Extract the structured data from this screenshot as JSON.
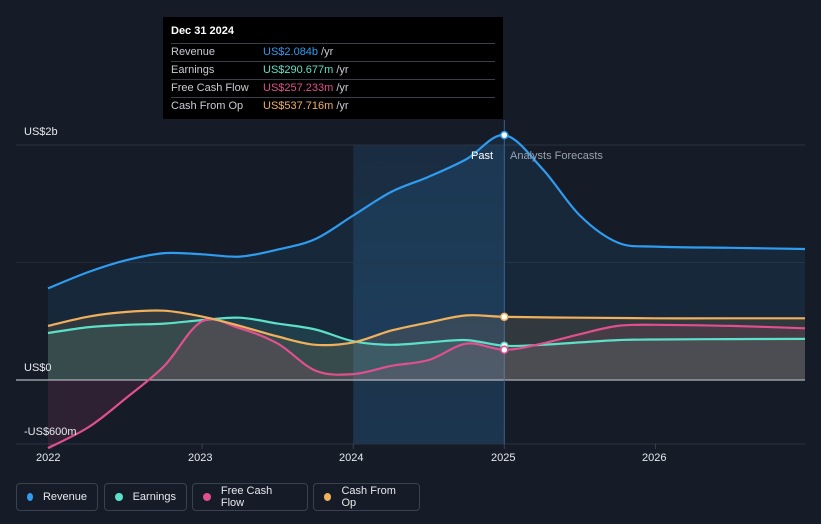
{
  "tooltip": {
    "date": "Dec 31 2024",
    "rows": [
      {
        "label": "Revenue",
        "value": "US$2.084b",
        "unit": "/yr",
        "color": "#2f9cf0"
      },
      {
        "label": "Earnings",
        "value": "US$290.677m",
        "unit": "/yr",
        "color": "#5ce0c8"
      },
      {
        "label": "Free Cash Flow",
        "value": "US$257.233m",
        "unit": "/yr",
        "color": "#e0508e"
      },
      {
        "label": "Cash From Op",
        "value": "US$537.716m",
        "unit": "/yr",
        "color": "#f0b05c"
      }
    ]
  },
  "labels": {
    "past": "Past",
    "forecast": "Analysts Forecasts"
  },
  "legend": [
    {
      "label": "Revenue",
      "color": "#2f9cf0"
    },
    {
      "label": "Earnings",
      "color": "#5ce0c8"
    },
    {
      "label": "Free Cash Flow",
      "color": "#e0508e"
    },
    {
      "label": "Cash From Op",
      "color": "#f0b05c"
    }
  ],
  "chart_data": {
    "type": "line",
    "unit": "US$ millions",
    "y_tick_labels": [
      "US$2b",
      "US$0",
      "-US$600m"
    ],
    "x_tick_labels": [
      "2022",
      "2023",
      "2024",
      "2025",
      "2026"
    ],
    "ylim": [
      -600,
      2000
    ],
    "xlim": [
      2021.98,
      2026.99
    ],
    "highlight_range": [
      2024,
      2025
    ],
    "past_forecast_split": 2025,
    "series": [
      {
        "name": "Revenue",
        "color": "#2f9cf0",
        "points": [
          [
            2021.98,
            780
          ],
          [
            2022.25,
            920
          ],
          [
            2022.5,
            1020
          ],
          [
            2022.75,
            1080
          ],
          [
            2023,
            1070
          ],
          [
            2023.25,
            1050
          ],
          [
            2023.5,
            1110
          ],
          [
            2023.75,
            1200
          ],
          [
            2024,
            1400
          ],
          [
            2024.25,
            1600
          ],
          [
            2024.5,
            1730
          ],
          [
            2024.75,
            1880
          ],
          [
            2025,
            2084
          ],
          [
            2025.25,
            1800
          ],
          [
            2025.5,
            1400
          ],
          [
            2025.75,
            1170
          ],
          [
            2026,
            1135
          ],
          [
            2026.5,
            1125
          ],
          [
            2026.99,
            1115
          ]
        ]
      },
      {
        "name": "Earnings",
        "color": "#5ce0c8",
        "points": [
          [
            2021.98,
            400
          ],
          [
            2022.25,
            450
          ],
          [
            2022.5,
            470
          ],
          [
            2022.75,
            480
          ],
          [
            2023,
            510
          ],
          [
            2023.25,
            530
          ],
          [
            2023.5,
            480
          ],
          [
            2023.75,
            430
          ],
          [
            2024,
            330
          ],
          [
            2024.25,
            300
          ],
          [
            2024.5,
            320
          ],
          [
            2024.75,
            340
          ],
          [
            2025,
            290.677
          ],
          [
            2025.25,
            300
          ],
          [
            2025.5,
            320
          ],
          [
            2025.75,
            340
          ],
          [
            2026,
            345
          ],
          [
            2026.5,
            348
          ],
          [
            2026.99,
            350
          ]
        ]
      },
      {
        "name": "Free Cash Flow",
        "color": "#e0508e",
        "points": [
          [
            2021.98,
            -580
          ],
          [
            2022.25,
            -400
          ],
          [
            2022.5,
            -150
          ],
          [
            2022.75,
            120
          ],
          [
            2023,
            500
          ],
          [
            2023.25,
            440
          ],
          [
            2023.5,
            310
          ],
          [
            2023.75,
            80
          ],
          [
            2024,
            50
          ],
          [
            2024.25,
            120
          ],
          [
            2024.5,
            170
          ],
          [
            2024.75,
            310
          ],
          [
            2025,
            257.233
          ],
          [
            2025.25,
            310
          ],
          [
            2025.5,
            390
          ],
          [
            2025.75,
            460
          ],
          [
            2026,
            470
          ],
          [
            2026.5,
            460
          ],
          [
            2026.99,
            440
          ]
        ]
      },
      {
        "name": "Cash From Op",
        "color": "#f0b05c",
        "points": [
          [
            2021.98,
            460
          ],
          [
            2022.25,
            540
          ],
          [
            2022.5,
            580
          ],
          [
            2022.75,
            590
          ],
          [
            2023,
            540
          ],
          [
            2023.25,
            460
          ],
          [
            2023.5,
            370
          ],
          [
            2023.75,
            300
          ],
          [
            2024,
            320
          ],
          [
            2024.25,
            420
          ],
          [
            2024.5,
            490
          ],
          [
            2024.75,
            550
          ],
          [
            2025,
            537.716
          ],
          [
            2025.5,
            530
          ],
          [
            2026,
            525
          ],
          [
            2026.5,
            525
          ],
          [
            2026.99,
            525
          ]
        ]
      }
    ]
  }
}
